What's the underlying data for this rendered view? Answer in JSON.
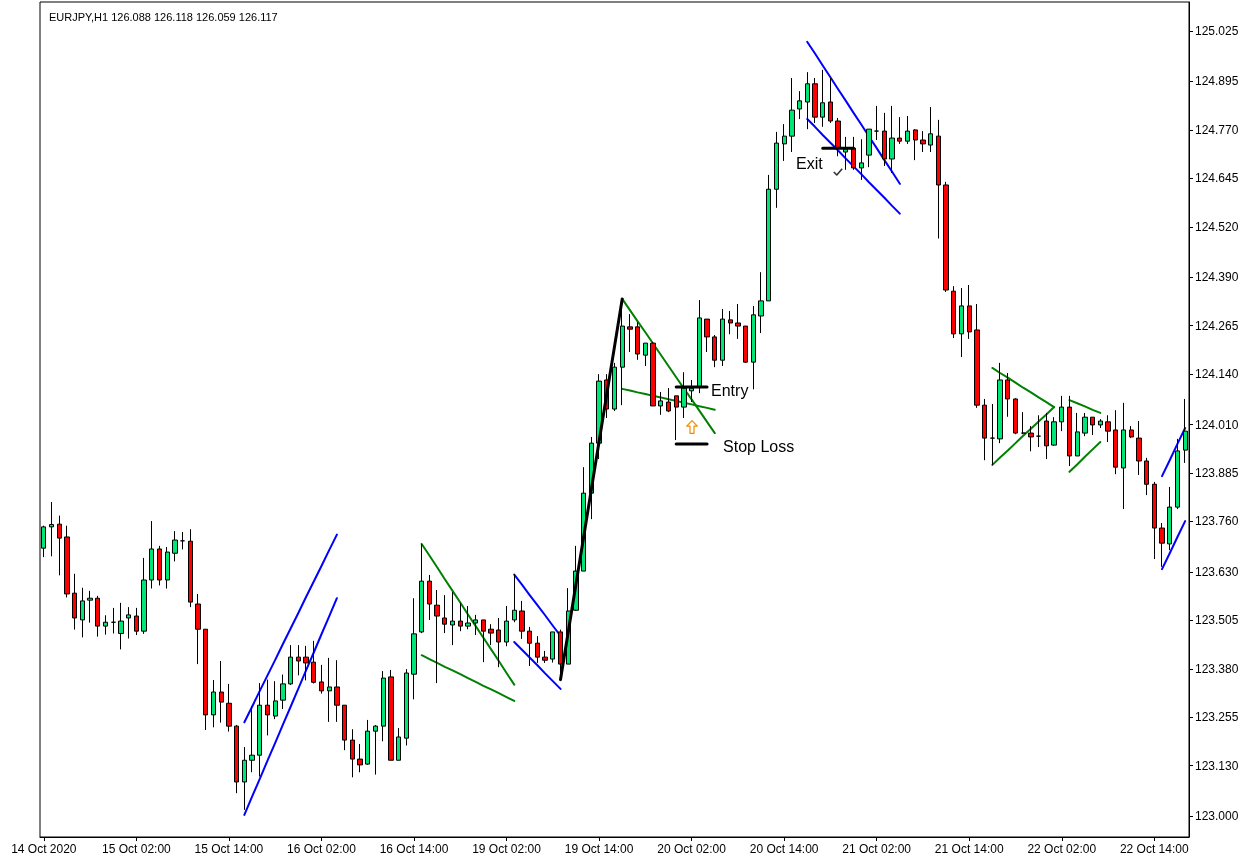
{
  "chart_data": {
    "type": "candlestick",
    "title": "EURJPY,H1 126.088 126.118 126.059 126.117",
    "categories": [
      "14 Oct 2020",
      null,
      null,
      null,
      null,
      null,
      null,
      null,
      null,
      null,
      null,
      null,
      "15 Oct 02:00",
      null,
      null,
      null,
      null,
      null,
      null,
      null,
      null,
      null,
      null,
      null,
      "15 Oct 14:00",
      null,
      null,
      null,
      null,
      null,
      null,
      null,
      null,
      null,
      null,
      null,
      "16 Oct 02:00",
      null,
      null,
      null,
      null,
      null,
      null,
      null,
      null,
      null,
      null,
      null,
      "16 Oct 14:00",
      null,
      null,
      null,
      null,
      null,
      null,
      null,
      null,
      null,
      null,
      null,
      "19 Oct 02:00",
      null,
      null,
      null,
      null,
      null,
      null,
      null,
      null,
      null,
      null,
      null,
      "19 Oct 14:00",
      null,
      null,
      null,
      null,
      null,
      null,
      null,
      null,
      null,
      null,
      null,
      "20 Oct 02:00",
      null,
      null,
      null,
      null,
      null,
      null,
      null,
      null,
      null,
      null,
      null,
      "20 Oct 14:00",
      null,
      null,
      null,
      null,
      null,
      null,
      null,
      null,
      null,
      null,
      null,
      "21 Oct 02:00",
      null,
      null,
      null,
      null,
      null,
      null,
      null,
      null,
      null,
      null,
      null,
      "21 Oct 14:00",
      null,
      null,
      null,
      null,
      null,
      null,
      null,
      null,
      null,
      null,
      null,
      "22 Oct 02:00",
      null,
      null,
      null,
      null,
      null,
      null,
      null,
      null,
      null,
      null,
      null,
      "22 Oct 14:00",
      null,
      null,
      null,
      null
    ],
    "ohlc": [
      [
        123.691,
        123.749,
        123.668,
        123.746
      ],
      [
        123.746,
        123.81,
        123.67,
        123.752
      ],
      [
        123.753,
        123.775,
        123.621,
        123.717
      ],
      [
        123.72,
        123.749,
        123.564,
        123.573
      ],
      [
        123.575,
        123.625,
        123.481,
        123.511
      ],
      [
        123.506,
        123.589,
        123.461,
        123.555
      ],
      [
        123.557,
        123.581,
        123.499,
        123.562
      ],
      [
        123.562,
        123.568,
        123.463,
        123.49
      ],
      [
        123.49,
        123.518,
        123.468,
        123.5
      ],
      [
        123.5,
        123.537,
        123.471,
        123.5
      ],
      [
        123.471,
        123.55,
        123.43,
        123.503
      ],
      [
        123.511,
        123.539,
        123.458,
        123.519
      ],
      [
        123.516,
        123.537,
        123.467,
        123.477
      ],
      [
        123.477,
        123.666,
        123.47,
        123.609
      ],
      [
        123.609,
        123.761,
        123.587,
        123.689
      ],
      [
        123.689,
        123.697,
        123.595,
        123.609
      ],
      [
        123.609,
        123.694,
        123.587,
        123.681
      ],
      [
        123.678,
        123.735,
        123.657,
        123.712
      ],
      [
        123.71,
        123.733,
        123.688,
        123.71
      ],
      [
        123.709,
        123.74,
        123.539,
        123.552
      ],
      [
        123.547,
        123.573,
        123.392,
        123.482
      ],
      [
        123.482,
        123.482,
        123.222,
        123.261
      ],
      [
        123.261,
        123.351,
        123.229,
        123.32
      ],
      [
        123.32,
        123.4,
        123.241,
        123.294
      ],
      [
        123.291,
        123.341,
        123.218,
        123.232
      ],
      [
        123.232,
        123.235,
        123.059,
        123.088
      ],
      [
        123.088,
        123.178,
        123.016,
        123.144
      ],
      [
        123.144,
        123.283,
        123.113,
        123.157
      ],
      [
        123.157,
        123.343,
        123.102,
        123.286
      ],
      [
        123.286,
        123.352,
        123.208,
        123.261
      ],
      [
        123.258,
        123.348,
        123.25,
        123.297
      ],
      [
        123.299,
        123.365,
        123.276,
        123.341
      ],
      [
        123.341,
        123.441,
        123.338,
        123.41
      ],
      [
        123.41,
        123.441,
        123.363,
        123.4
      ],
      [
        123.41,
        123.439,
        123.35,
        123.395
      ],
      [
        123.397,
        123.452,
        123.342,
        123.345
      ],
      [
        123.346,
        123.39,
        123.316,
        123.323
      ],
      [
        123.323,
        123.408,
        123.243,
        123.333
      ],
      [
        123.333,
        123.402,
        123.243,
        123.286
      ],
      [
        123.286,
        123.286,
        123.17,
        123.196
      ],
      [
        123.196,
        123.224,
        123.1,
        123.147
      ],
      [
        123.147,
        123.186,
        123.113,
        123.132
      ],
      [
        123.134,
        123.248,
        123.132,
        123.219
      ],
      [
        123.219,
        123.235,
        123.107,
        123.232
      ],
      [
        123.232,
        123.374,
        123.193,
        123.356
      ],
      [
        123.359,
        123.377,
        123.144,
        123.144
      ],
      [
        123.144,
        123.227,
        123.144,
        123.204
      ],
      [
        123.201,
        123.379,
        123.182,
        123.369
      ],
      [
        123.366,
        123.562,
        123.301,
        123.47
      ],
      [
        123.475,
        123.702,
        123.472,
        123.606
      ],
      [
        123.606,
        123.622,
        123.506,
        123.547
      ],
      [
        123.544,
        123.583,
        123.343,
        123.516
      ],
      [
        123.511,
        123.57,
        123.472,
        123.495
      ],
      [
        123.493,
        123.578,
        123.441,
        123.503
      ],
      [
        123.503,
        123.55,
        123.477,
        123.49
      ],
      [
        123.49,
        123.542,
        123.482,
        123.498
      ],
      [
        123.498,
        123.519,
        123.467,
        123.506
      ],
      [
        123.506,
        123.506,
        123.397,
        123.477
      ],
      [
        123.482,
        123.495,
        123.441,
        123.472
      ],
      [
        123.48,
        123.511,
        123.384,
        123.449
      ],
      [
        123.449,
        123.542,
        123.438,
        123.503
      ],
      [
        123.506,
        123.624,
        123.5,
        123.531
      ],
      [
        123.529,
        123.555,
        123.457,
        123.477
      ],
      [
        123.477,
        123.488,
        123.387,
        123.446
      ],
      [
        123.446,
        123.464,
        123.395,
        123.41
      ],
      [
        123.41,
        123.426,
        123.395,
        123.402
      ],
      [
        123.405,
        123.475,
        123.396,
        123.475
      ],
      [
        123.475,
        123.481,
        123.352,
        123.392
      ],
      [
        123.392,
        123.588,
        123.392,
        123.529
      ],
      [
        123.531,
        123.697,
        123.529,
        123.632
      ],
      [
        123.632,
        123.9,
        123.632,
        123.833
      ],
      [
        123.833,
        123.978,
        123.766,
        123.962
      ],
      [
        123.962,
        124.14,
        123.921,
        124.122
      ],
      [
        124.125,
        124.14,
        124.027,
        124.05
      ],
      [
        124.05,
        124.169,
        124.045,
        124.158
      ],
      [
        124.158,
        124.334,
        124.06,
        124.264
      ],
      [
        124.262,
        124.295,
        124.197,
        124.256
      ],
      [
        124.262,
        124.274,
        124.177,
        124.192
      ],
      [
        124.189,
        124.22,
        124.161,
        124.22
      ],
      [
        124.22,
        124.223,
        124.058,
        124.058
      ],
      [
        124.058,
        124.094,
        124.035,
        124.071
      ],
      [
        124.068,
        124.104,
        124.042,
        124.045
      ],
      [
        124.084,
        124.084,
        123.97,
        124.055
      ],
      [
        124.055,
        124.145,
        124.027,
        124.104
      ],
      [
        124.097,
        124.125,
        124.068,
        124.104
      ],
      [
        124.107,
        124.331,
        124.091,
        124.285
      ],
      [
        124.282,
        124.282,
        124.197,
        124.236
      ],
      [
        124.236,
        124.241,
        124.158,
        124.176
      ],
      [
        124.176,
        124.308,
        124.161,
        124.282
      ],
      [
        124.28,
        124.303,
        124.243,
        124.272
      ],
      [
        124.272,
        124.321,
        124.231,
        124.264
      ],
      [
        124.264,
        124.264,
        124.169,
        124.171
      ],
      [
        124.171,
        124.316,
        124.101,
        124.293
      ],
      [
        124.29,
        124.403,
        124.246,
        124.329
      ],
      [
        124.329,
        124.654,
        124.329,
        124.617
      ],
      [
        124.617,
        124.765,
        124.569,
        124.736
      ],
      [
        124.734,
        124.785,
        124.69,
        124.754
      ],
      [
        124.754,
        124.904,
        124.713,
        124.821
      ],
      [
        124.824,
        124.87,
        124.798,
        124.845
      ],
      [
        124.842,
        124.919,
        124.772,
        124.889
      ],
      [
        124.889,
        124.904,
        124.788,
        124.803
      ],
      [
        124.803,
        124.925,
        124.778,
        124.84
      ],
      [
        124.842,
        124.904,
        124.788,
        124.793
      ],
      [
        124.793,
        124.801,
        124.702,
        124.723
      ],
      [
        124.713,
        124.752,
        124.667,
        124.721
      ],
      [
        124.723,
        124.752,
        124.667,
        124.672
      ],
      [
        124.672,
        124.746,
        124.641,
        124.685
      ],
      [
        124.705,
        124.772,
        124.674,
        124.772
      ],
      [
        124.767,
        124.832,
        124.744,
        124.767
      ],
      [
        124.767,
        124.814,
        124.677,
        124.695
      ],
      [
        124.695,
        124.832,
        124.659,
        124.749
      ],
      [
        124.749,
        124.803,
        124.734,
        124.741
      ],
      [
        124.741,
        124.806,
        124.734,
        124.767
      ],
      [
        124.77,
        124.772,
        124.692,
        124.744
      ],
      [
        124.744,
        124.767,
        124.713,
        124.734
      ],
      [
        124.731,
        124.829,
        124.713,
        124.76
      ],
      [
        124.754,
        124.796,
        124.49,
        124.628
      ],
      [
        124.628,
        124.636,
        124.352,
        124.357
      ],
      [
        124.354,
        124.367,
        124.233,
        124.244
      ],
      [
        124.244,
        124.362,
        124.184,
        124.316
      ],
      [
        124.316,
        124.37,
        124.231,
        124.249
      ],
      [
        124.254,
        124.321,
        124.053,
        124.06
      ],
      [
        124.06,
        124.076,
        123.918,
        123.975
      ],
      [
        123.975,
        124.063,
        123.905,
        123.975
      ],
      [
        123.973,
        124.169,
        123.962,
        124.125
      ],
      [
        124.125,
        124.143,
        124.03,
        124.076
      ],
      [
        124.076,
        124.078,
        123.985,
        123.988
      ],
      [
        123.988,
        124.042,
        123.985,
        123.988
      ],
      [
        123.988,
        124.006,
        123.941,
        123.978
      ],
      [
        123.98,
        124.034,
        123.952,
        123.98
      ],
      [
        124.019,
        124.04,
        123.921,
        123.955
      ],
      [
        123.957,
        124.029,
        123.955,
        124.017
      ],
      [
        124.017,
        124.084,
        123.993,
        124.055
      ],
      [
        124.055,
        124.084,
        123.903,
        123.929
      ],
      [
        123.929,
        124.04,
        123.929,
        123.991
      ],
      [
        123.988,
        124.04,
        123.98,
        124.029
      ],
      [
        124.029,
        124.029,
        123.983,
        124.009
      ],
      [
        124.009,
        124.024,
        124.001,
        124.019
      ],
      [
        124.017,
        124.034,
        123.965,
        123.993
      ],
      [
        123.996,
        124.047,
        123.882,
        123.9
      ],
      [
        123.898,
        124.066,
        123.792,
        123.996
      ],
      [
        123.996,
        124.006,
        123.975,
        123.978
      ],
      [
        123.975,
        124.019,
        123.88,
        123.916
      ],
      [
        123.916,
        123.924,
        123.828,
        123.856
      ],
      [
        123.856,
        123.862,
        123.663,
        123.743
      ],
      [
        123.743,
        123.756,
        123.643,
        123.704
      ],
      [
        123.702,
        123.849,
        123.686,
        123.797
      ],
      [
        123.797,
        123.973,
        123.792,
        123.942
      ],
      [
        123.944,
        124.076,
        123.911,
        123.993
      ]
    ],
    "colors": [
      "#00e676",
      "#00e676",
      "#ff0000",
      "#ff0000",
      "#ff0000",
      "#00e676",
      "#00e676",
      "#ff0000",
      "#00e676",
      "#000000",
      "#00e676",
      "#00e676",
      "#ff0000",
      "#00e676",
      "#00e676",
      "#ff0000",
      "#00e676",
      "#00e676",
      "#000000",
      "#ff0000",
      "#ff0000",
      "#ff0000",
      "#00e676",
      "#ff0000",
      "#ff0000",
      "#ff0000",
      "#00e676",
      "#00e676",
      "#00e676",
      "#ff0000",
      "#00e676",
      "#00e676",
      "#00e676",
      "#ff0000",
      "#ff0000",
      "#ff0000",
      "#ff0000",
      "#00e676",
      "#ff0000",
      "#ff0000",
      "#ff0000",
      "#ff0000",
      "#00e676",
      "#00e676",
      "#00e676",
      "#ff0000",
      "#00e676",
      "#00e676",
      "#00e676",
      "#00e676",
      "#ff0000",
      "#ff0000",
      "#ff0000",
      "#00e676",
      "#ff0000",
      "#00e676",
      "#00e676",
      "#ff0000",
      "#ff0000",
      "#ff0000",
      "#00e676",
      "#00e676",
      "#ff0000",
      "#ff0000",
      "#ff0000",
      "#ff0000",
      "#00e676",
      "#ff0000",
      "#00e676",
      "#00e676",
      "#00e676",
      "#00e676",
      "#00e676",
      "#ff0000",
      "#00e676",
      "#00e676",
      "#ff0000",
      "#ff0000",
      "#00e676",
      "#ff0000",
      "#00e676",
      "#ff0000",
      "#ff0000",
      "#00e676",
      "#00e676",
      "#00e676",
      "#ff0000",
      "#ff0000",
      "#00e676",
      "#ff0000",
      "#ff0000",
      "#ff0000",
      "#00e676",
      "#00e676",
      "#00e676",
      "#00e676",
      "#00e676",
      "#00e676",
      "#00e676",
      "#00e676",
      "#ff0000",
      "#00e676",
      "#ff0000",
      "#ff0000",
      "#00e676",
      "#ff0000",
      "#00e676",
      "#00e676",
      "#000000",
      "#ff0000",
      "#00e676",
      "#ff0000",
      "#00e676",
      "#ff0000",
      "#ff0000",
      "#00e676",
      "#ff0000",
      "#ff0000",
      "#ff0000",
      "#00e676",
      "#ff0000",
      "#ff0000",
      "#ff0000",
      "#000000",
      "#00e676",
      "#ff0000",
      "#ff0000",
      "#000000",
      "#ff0000",
      "#000000",
      "#ff0000",
      "#00e676",
      "#00e676",
      "#ff0000",
      "#00e676",
      "#00e676",
      "#ff0000",
      "#00e676",
      "#ff0000",
      "#ff0000",
      "#00e676",
      "#ff0000",
      "#ff0000",
      "#ff0000",
      "#ff0000",
      "#ff0000",
      "#00e676",
      "#00e676",
      "#00e676"
    ],
    "ylim": [
      122.946,
      125.1
    ],
    "yticks": [
      125.025,
      124.895,
      {
        "value": 124.77,
        "label": "124.770"
      },
      124.645,
      {
        "value": 124.52,
        "label": "124.520"
      },
      {
        "value": 124.39,
        "label": "124.390"
      },
      124.265,
      {
        "value": 124.14,
        "label": "124.140"
      },
      {
        "value": 124.01,
        "label": "124.010"
      },
      123.885,
      {
        "value": 123.76,
        "label": "123.760"
      },
      {
        "value": 123.63,
        "label": "123.630"
      },
      123.505,
      {
        "value": 123.38,
        "label": "123.380"
      },
      123.255,
      {
        "value": 123.13,
        "label": "123.130"
      },
      {
        "value": 123,
        "label": "123.000"
      }
    ],
    "series": [
      {
        "type": "line",
        "color": "#0000ff",
        "values": [
          null,
          null,
          null,
          null,
          null,
          null,
          null,
          null,
          null,
          null,
          null,
          null,
          null,
          null,
          null,
          null,
          null,
          null,
          null,
          null,
          null,
          null,
          null,
          null,
          null,
          null,
          123.242,
          123.282,
          123.323,
          123.363,
          123.403,
          123.444,
          123.484,
          123.524,
          123.565,
          123.605,
          123.645,
          123.686,
          123.726,
          null,
          null,
          null,
          null,
          null,
          null,
          null,
          null,
          null,
          null,
          null,
          null,
          null,
          null,
          null,
          null,
          null,
          null,
          null,
          null,
          null,
          null,
          123.623,
          123.597,
          123.57,
          123.544,
          123.518,
          123.491,
          123.465,
          null,
          null,
          null,
          null,
          null,
          null,
          null,
          null,
          null,
          null,
          null,
          null,
          null,
          null,
          null,
          null,
          null,
          null,
          null,
          null,
          null,
          null,
          null,
          null,
          null,
          null,
          null,
          null,
          null,
          null,
          null,
          124.997,
          124.967,
          124.936,
          124.906,
          124.875,
          124.845,
          124.814,
          124.784,
          124.753,
          124.723,
          124.692,
          124.662,
          124.631,
          null,
          null,
          null,
          null,
          null,
          null,
          null,
          null,
          null,
          null,
          null,
          null,
          null,
          null,
          null,
          null,
          null,
          null,
          null,
          null,
          null,
          null,
          null,
          null,
          null,
          null,
          null,
          null,
          null,
          null,
          null,
          null,
          null,
          123.877,
          123.918,
          123.96,
          124.001
        ]
      },
      {
        "type": "line",
        "color": "#0000ff",
        "values": [
          null,
          null,
          null,
          null,
          null,
          null,
          null,
          null,
          null,
          null,
          null,
          null,
          null,
          null,
          null,
          null,
          null,
          null,
          null,
          null,
          null,
          null,
          null,
          null,
          null,
          null,
          123.003,
          123.05,
          123.096,
          123.143,
          123.189,
          123.236,
          123.282,
          123.329,
          123.376,
          123.422,
          123.469,
          123.515,
          123.562,
          null,
          null,
          null,
          null,
          null,
          null,
          null,
          null,
          null,
          null,
          null,
          null,
          null,
          null,
          null,
          null,
          null,
          null,
          null,
          null,
          null,
          null,
          123.449,
          123.429,
          123.409,
          123.389,
          123.368,
          123.348,
          123.328,
          null,
          null,
          null,
          null,
          null,
          null,
          null,
          null,
          null,
          null,
          null,
          null,
          null,
          null,
          null,
          null,
          null,
          null,
          null,
          null,
          null,
          null,
          null,
          null,
          null,
          null,
          null,
          null,
          null,
          null,
          null,
          124.798,
          124.778,
          124.757,
          124.737,
          124.717,
          124.696,
          124.676,
          124.656,
          124.635,
          124.615,
          124.595,
          124.574,
          124.554,
          null,
          null,
          null,
          null,
          null,
          null,
          null,
          null,
          null,
          null,
          null,
          null,
          null,
          null,
          null,
          null,
          null,
          null,
          null,
          null,
          null,
          null,
          null,
          null,
          null,
          null,
          null,
          null,
          null,
          null,
          null,
          null,
          null,
          123.637,
          123.678,
          123.72,
          123.761
        ]
      },
      {
        "type": "line",
        "color": "#008000",
        "values": [
          null,
          null,
          null,
          null,
          null,
          null,
          null,
          null,
          null,
          null,
          null,
          null,
          null,
          null,
          null,
          null,
          null,
          null,
          null,
          null,
          null,
          null,
          null,
          null,
          null,
          null,
          null,
          null,
          null,
          null,
          null,
          null,
          null,
          null,
          null,
          null,
          null,
          null,
          null,
          null,
          null,
          null,
          null,
          null,
          null,
          null,
          null,
          null,
          null,
          123.702,
          123.672,
          123.642,
          123.611,
          123.581,
          123.551,
          123.52,
          123.49,
          123.46,
          123.43,
          123.4,
          123.369,
          123.339,
          null,
          null,
          null,
          null,
          null,
          null,
          null,
          null,
          null,
          null,
          null,
          null,
          null,
          124.334,
          124.305,
          124.276,
          124.248,
          124.219,
          124.19,
          124.161,
          124.132,
          124.103,
          124.075,
          124.046,
          124.017,
          123.988,
          null,
          null,
          null,
          null,
          null,
          null,
          null,
          null,
          null,
          null,
          null,
          null,
          null,
          null,
          null,
          null,
          null,
          null,
          null,
          null,
          null,
          null,
          null,
          null,
          null,
          null,
          null,
          null,
          null,
          null,
          null,
          null,
          null,
          null,
          null,
          124.156,
          124.143,
          124.131,
          124.118,
          124.105,
          124.093,
          124.08,
          124.068,
          124.055,
          null,
          124.073,
          124.065,
          124.057,
          124.048,
          124.04,
          null,
          null,
          null,
          null,
          null,
          null,
          null,
          null,
          null,
          null,
          null
        ]
      },
      {
        "type": "line",
        "color": "#008000",
        "values": [
          null,
          null,
          null,
          null,
          null,
          null,
          null,
          null,
          null,
          null,
          null,
          null,
          null,
          null,
          null,
          null,
          null,
          null,
          null,
          null,
          null,
          null,
          null,
          null,
          null,
          null,
          null,
          null,
          null,
          null,
          null,
          null,
          null,
          null,
          null,
          null,
          null,
          null,
          null,
          null,
          null,
          null,
          null,
          null,
          null,
          null,
          null,
          null,
          null,
          123.415,
          123.405,
          123.395,
          123.385,
          123.376,
          123.366,
          123.356,
          123.346,
          123.336,
          123.327,
          123.317,
          123.307,
          123.297,
          null,
          null,
          null,
          null,
          null,
          null,
          null,
          null,
          null,
          null,
          null,
          null,
          null,
          124.102,
          124.098,
          124.093,
          124.089,
          124.084,
          124.08,
          124.075,
          124.071,
          124.066,
          124.062,
          124.057,
          124.053,
          124.048,
          null,
          null,
          null,
          null,
          null,
          null,
          null,
          null,
          null,
          null,
          null,
          null,
          null,
          null,
          null,
          null,
          null,
          null,
          null,
          null,
          null,
          null,
          null,
          null,
          null,
          null,
          null,
          null,
          null,
          null,
          null,
          null,
          null,
          null,
          null,
          123.906,
          123.925,
          123.943,
          123.962,
          123.981,
          123.999,
          124.018,
          124.036,
          124.055,
          null,
          123.888,
          123.907,
          123.927,
          123.946,
          123.965,
          null,
          null,
          null,
          null,
          null,
          null,
          null,
          null,
          null,
          null,
          null
        ]
      },
      {
        "type": "line",
        "color": "#000000",
        "values": [
          null,
          null,
          null,
          null,
          null,
          null,
          null,
          null,
          null,
          null,
          null,
          null,
          null,
          null,
          null,
          null,
          null,
          null,
          null,
          null,
          null,
          null,
          null,
          null,
          null,
          null,
          null,
          null,
          null,
          null,
          null,
          null,
          null,
          null,
          null,
          null,
          null,
          null,
          null,
          null,
          null,
          null,
          null,
          null,
          null,
          null,
          null,
          null,
          null,
          null,
          null,
          null,
          null,
          null,
          null,
          null,
          null,
          null,
          null,
          null,
          null,
          null,
          null,
          null,
          null,
          null,
          null,
          123.352,
          123.475,
          123.598,
          123.72,
          123.843,
          123.966,
          124.089,
          124.211,
          124.334,
          null,
          null,
          null,
          null,
          null,
          null,
          124.107,
          124.107,
          124.107,
          124.107,
          124.107,
          null,
          null,
          null,
          null,
          null,
          null,
          null,
          null,
          null,
          null,
          null,
          null,
          null,
          null,
          124.723,
          124.723,
          124.723,
          124.723,
          124.723,
          null,
          null,
          null,
          null,
          null,
          null,
          null,
          null,
          null,
          null,
          null,
          null,
          null,
          null,
          null,
          null,
          null,
          null,
          null,
          null,
          null,
          null,
          null,
          null,
          null,
          null,
          null,
          null,
          null,
          null,
          null,
          null,
          null,
          null,
          null,
          null,
          null,
          null,
          null,
          null,
          null,
          null,
          null
        ]
      },
      {
        "type": "line",
        "color": "#000000",
        "values": [
          null,
          null,
          null,
          null,
          null,
          null,
          null,
          null,
          null,
          null,
          null,
          null,
          null,
          null,
          null,
          null,
          null,
          null,
          null,
          null,
          null,
          null,
          null,
          null,
          null,
          null,
          null,
          null,
          null,
          null,
          null,
          null,
          null,
          null,
          null,
          null,
          null,
          null,
          null,
          null,
          null,
          null,
          null,
          null,
          null,
          null,
          null,
          null,
          null,
          null,
          null,
          null,
          null,
          null,
          null,
          null,
          null,
          null,
          null,
          null,
          null,
          null,
          null,
          null,
          null,
          null,
          null,
          null,
          null,
          null,
          null,
          null,
          null,
          null,
          null,
          null,
          null,
          null,
          null,
          null,
          null,
          null,
          123.96,
          123.96,
          123.96,
          123.96,
          123.96,
          null,
          null,
          null,
          null,
          null,
          null,
          null,
          null,
          null,
          null,
          null,
          null,
          null,
          null,
          null,
          null,
          null,
          null,
          null,
          null,
          null,
          null,
          null,
          null,
          null,
          null,
          null,
          null,
          null,
          null,
          null,
          null,
          null,
          null,
          null,
          null,
          null,
          null,
          null,
          null,
          null,
          null,
          null,
          null,
          null,
          null,
          null,
          null,
          null,
          null,
          null,
          null,
          null,
          null,
          null,
          null,
          null,
          null,
          null,
          null,
          null,
          null
        ]
      }
    ],
    "annotations": [
      "Entry",
      "Stop Loss",
      "Exit"
    ]
  }
}
